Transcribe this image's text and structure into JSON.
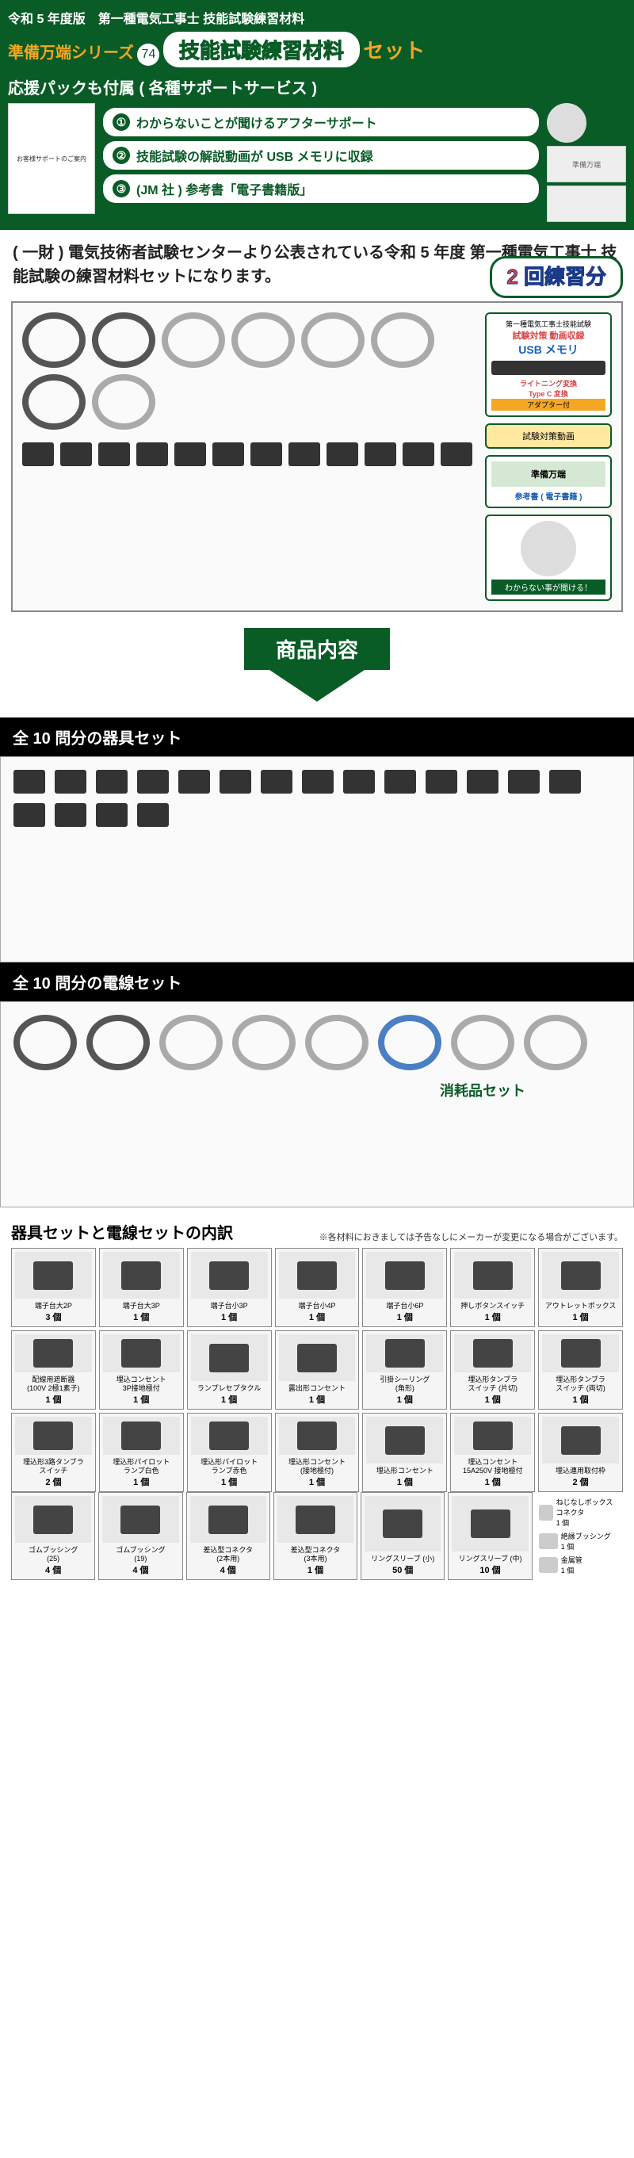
{
  "header": {
    "topLine": "令和 5 年度版　第一種電気工事士 技能試験練習材料",
    "seriesLabel": "準備万端シリーズ",
    "seriesNum": "74",
    "titleBadge": "技能試験練習材料",
    "titleSet": "セット",
    "supportTitle": "応援パックも付属 ( 各種サポートサービス )",
    "supportItems": [
      "わからないことが聞けるアフターサポート",
      "技能試験の解説動画が USB メモリに収録",
      "(JM 社 ) 参考書「電子書籍版」"
    ]
  },
  "intro": "( 一財 ) 電気技術者試験センターより公表されている令和 5 年度 第一種電気工事士 技能試験の練習材料セットになります。",
  "practiceBadge": "2 回練習分",
  "sideCards": {
    "usb": {
      "t1": "第一種電気工事士技能試験",
      "t2": "試験対策 動画収録",
      "t3": "USB メモリ",
      "l1": "ライトニング変換",
      "l2": "Type C 変換",
      "l3": "アダプター付"
    },
    "video": "試験対策動画",
    "book": {
      "t": "準備万端",
      "s": "参考書 ( 電子書籍 )"
    },
    "avatar": "わからない事が聞ける！"
  },
  "arrowLabel": "商品内容",
  "section1": "全 10 問分の器具セット",
  "section2": "全 10 問分の電線セット",
  "consumable": "消耗品セット",
  "breakdown": {
    "title": "器具セットと電線セットの内訳",
    "note": "※各材料におきましては予告なしにメーカーが変更になる場合がございます。"
  },
  "items": [
    [
      {
        "n": "端子台大2P",
        "q": "3 個"
      },
      {
        "n": "端子台大3P",
        "q": "1 個"
      },
      {
        "n": "端子台小3P",
        "q": "1 個"
      },
      {
        "n": "端子台小4P",
        "q": "1 個"
      },
      {
        "n": "端子台小6P",
        "q": "1 個"
      },
      {
        "n": "押しボタンスイッチ",
        "q": "1 個"
      },
      {
        "n": "アウトレットボックス",
        "q": "1 個"
      }
    ],
    [
      {
        "n": "配線用遮断器\n(100V 2極1素子)",
        "q": "1 個"
      },
      {
        "n": "埋込コンセント\n3P接地極付",
        "q": "1 個"
      },
      {
        "n": "ランプレセプタクル",
        "q": "1 個"
      },
      {
        "n": "露出形コンセント",
        "q": "1 個"
      },
      {
        "n": "引掛シーリング\n(角形)",
        "q": "1 個"
      },
      {
        "n": "埋込形タンブラ\nスイッチ (片切)",
        "q": "1 個"
      },
      {
        "n": "埋込形タンブラ\nスイッチ (両切)",
        "q": "1 個"
      }
    ],
    [
      {
        "n": "埋込形3路タンブラ\nスイッチ",
        "q": "2 個"
      },
      {
        "n": "埋込形パイロット\nランプ白色",
        "q": "1 個"
      },
      {
        "n": "埋込形パイロット\nランプ赤色",
        "q": "1 個"
      },
      {
        "n": "埋込形コンセント\n(接地極付)",
        "q": "1 個"
      },
      {
        "n": "埋込形コンセント",
        "q": "1 個"
      },
      {
        "n": "埋込コンセント\n15A250V 接地極付",
        "q": "1 個"
      },
      {
        "n": "埋込連用取付枠",
        "q": "2 個"
      }
    ],
    [
      {
        "n": "ゴムブッシング\n(25)",
        "q": "4 個"
      },
      {
        "n": "ゴムブッシング\n(19)",
        "q": "4 個"
      },
      {
        "n": "差込型コネクタ\n(2本用)",
        "q": "4 個"
      },
      {
        "n": "差込型コネクタ\n(3本用)",
        "q": "1 個"
      },
      {
        "n": "リングスリーブ (小)",
        "q": "50 個"
      },
      {
        "n": "リングスリーブ (中)",
        "q": "10 個"
      }
    ]
  ],
  "extras": [
    {
      "n": "ねじなしボックスコネクタ",
      "q": "1 個"
    },
    {
      "n": "絶縁ブッシング",
      "q": "1 個"
    },
    {
      "n": "金属管",
      "q": "1 個"
    }
  ]
}
